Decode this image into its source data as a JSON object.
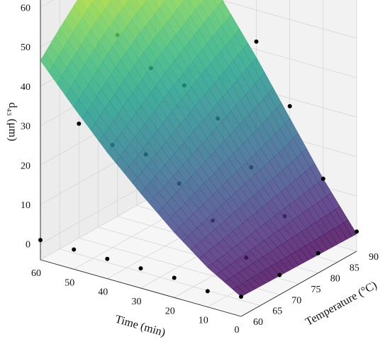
{
  "chart_data": {
    "type": "surface3d",
    "title": "",
    "xlabel": "Time (min)",
    "ylabel": "Temperature (°C)",
    "zlabel": "d₄₃ (μm)",
    "x_ticks": [
      0,
      10,
      20,
      30,
      40,
      50,
      60
    ],
    "y_ticks": [
      60,
      65,
      70,
      75,
      80,
      85,
      90
    ],
    "z_ticks": [
      0,
      10,
      20,
      30,
      40,
      50,
      60
    ],
    "xlim": [
      0,
      60
    ],
    "ylim": [
      60,
      90
    ],
    "zlim": [
      -4,
      66
    ],
    "grid": true,
    "colormap": "viridis",
    "surface": {
      "x": [
        0,
        10,
        20,
        30,
        40,
        50,
        60
      ],
      "y": [
        60,
        65,
        70,
        75,
        80,
        85,
        90
      ],
      "z": [
        [
          1.0,
          6.0,
          12.5,
          20.0,
          28.0,
          37.0,
          46.5
        ],
        [
          0.9,
          7.0,
          14.5,
          23.0,
          32.0,
          42.0,
          52.0
        ],
        [
          0.8,
          8.0,
          16.5,
          26.0,
          36.0,
          47.0,
          57.0
        ],
        [
          0.7,
          9.0,
          18.5,
          29.0,
          40.0,
          51.0,
          61.0
        ],
        [
          0.6,
          10.0,
          20.5,
          32.0,
          43.5,
          54.5,
          63.5
        ],
        [
          0.5,
          11.0,
          22.5,
          35.0,
          47.0,
          58.0,
          65.0
        ],
        [
          0.4,
          12.0,
          25.0,
          38.0,
          50.0,
          60.5,
          66.0
        ]
      ]
    },
    "points": [
      {
        "x": 0,
        "y": 60,
        "z": 1
      },
      {
        "x": 0,
        "y": 70,
        "z": 1
      },
      {
        "x": 0,
        "y": 80,
        "z": 1
      },
      {
        "x": 0,
        "y": 90,
        "z": 1
      },
      {
        "x": 10,
        "y": 60,
        "z": 0
      },
      {
        "x": 10,
        "y": 70,
        "z": 3
      },
      {
        "x": 10,
        "y": 80,
        "z": 8
      },
      {
        "x": 10,
        "y": 90,
        "z": 12
      },
      {
        "x": 20,
        "y": 60,
        "z": 1
      },
      {
        "x": 20,
        "y": 70,
        "z": 10
      },
      {
        "x": 20,
        "y": 80,
        "z": 18
      },
      {
        "x": 20,
        "y": 90,
        "z": 28
      },
      {
        "x": 30,
        "y": 60,
        "z": 1
      },
      {
        "x": 30,
        "y": 70,
        "z": 17
      },
      {
        "x": 30,
        "y": 80,
        "z": 28
      },
      {
        "x": 30,
        "y": 90,
        "z": 42
      },
      {
        "x": 40,
        "y": 60,
        "z": 1
      },
      {
        "x": 40,
        "y": 70,
        "z": 22
      },
      {
        "x": 40,
        "y": 80,
        "z": 34
      },
      {
        "x": 40,
        "y": 90,
        "z": 52
      },
      {
        "x": 50,
        "y": 60,
        "z": 1
      },
      {
        "x": 50,
        "y": 70,
        "z": 22
      },
      {
        "x": 50,
        "y": 80,
        "z": 36
      },
      {
        "x": 50,
        "y": 90,
        "z": 60
      },
      {
        "x": 60,
        "y": 60,
        "z": 1
      },
      {
        "x": 60,
        "y": 70,
        "z": 25
      },
      {
        "x": 60,
        "y": 80,
        "z": 42
      },
      {
        "x": 60,
        "y": 90,
        "z": 63
      }
    ]
  }
}
